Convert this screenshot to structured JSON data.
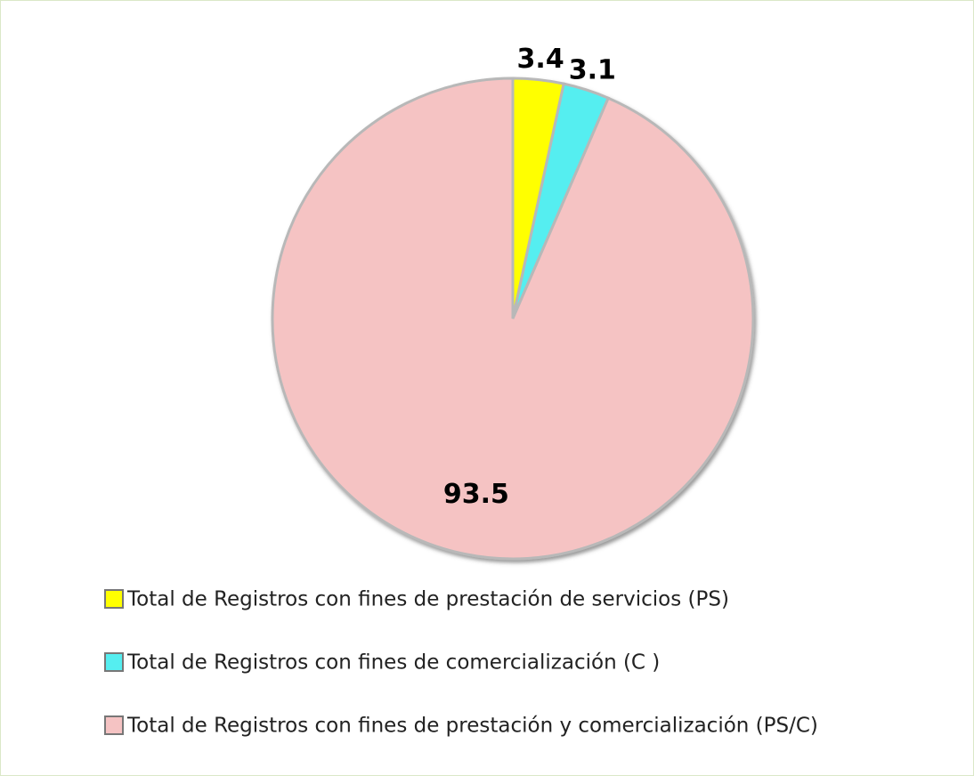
{
  "chart_data": {
    "type": "pie",
    "categories": [
      "Total de Registros con fines de prestación de servicios (PS)",
      "Total de Registros con fines de comercialización (C )",
      "Total de Registros con fines de prestación y comercialización (PS/C)"
    ],
    "values": [
      3.4,
      3.1,
      93.5
    ],
    "colors": [
      "#ffff00",
      "#55eef0",
      "#f5c3c3"
    ]
  }
}
